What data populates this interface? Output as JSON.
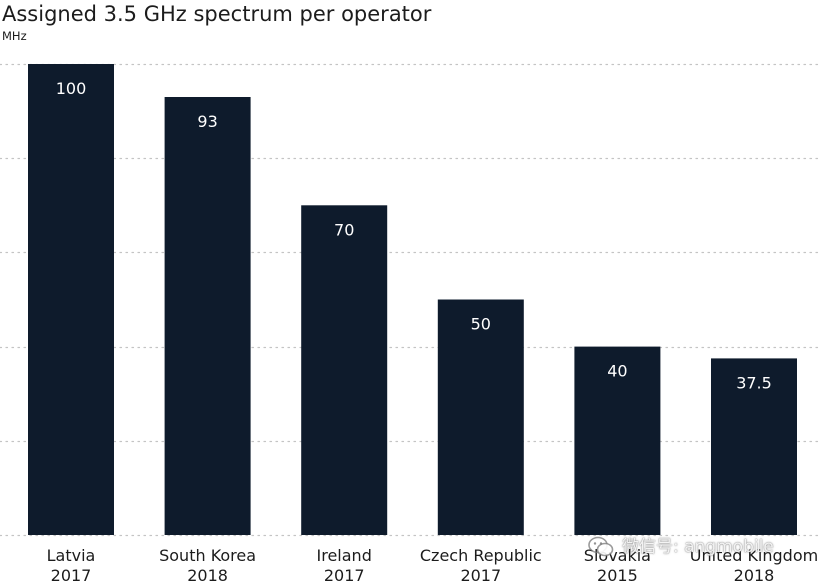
{
  "chart_data": {
    "type": "bar",
    "title": "Assigned 3.5 GHz spectrum per operator",
    "unit": "MHz",
    "categories": [
      "Latvia",
      "South Korea",
      "Ireland",
      "Czech Republic",
      "Slovakia",
      "United Kingdom"
    ],
    "years": [
      "2017",
      "2018",
      "2017",
      "2017",
      "2015",
      "2018"
    ],
    "values": [
      100,
      93,
      70,
      50,
      40,
      37.5
    ],
    "data_labels": [
      "100",
      "93",
      "70",
      "50",
      "40",
      "37.5"
    ],
    "ylim": [
      0,
      100
    ],
    "y_tick_labels_shown": false,
    "grid": "horizontal dotted",
    "colors": {
      "bar": "#0e1b2c",
      "bar_label": "#ffffff",
      "grid": "#c4c4c4",
      "text": "#1c1c1c"
    }
  },
  "watermark": {
    "icon": "wechat-icon",
    "text": "微信号: angmobile"
  }
}
